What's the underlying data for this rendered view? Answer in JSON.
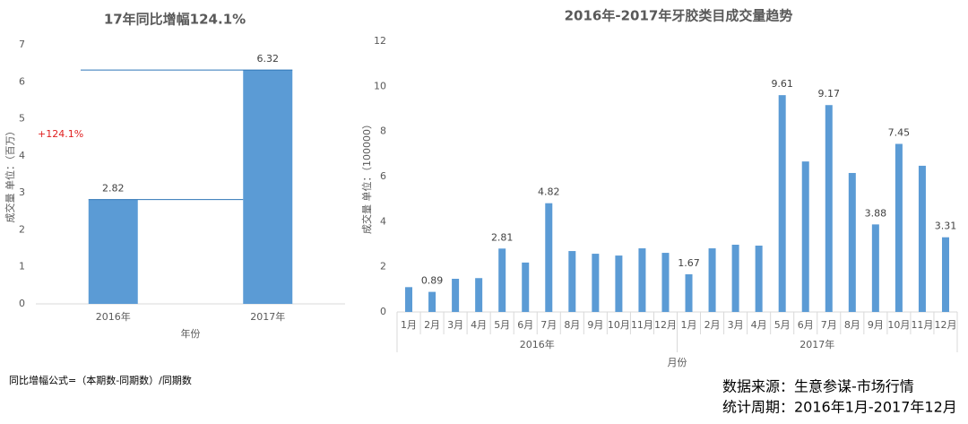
{
  "chart_data": [
    {
      "type": "bar",
      "title": "17年同比增幅124.1%",
      "y_label": "成交量 单位：（百万）",
      "x_label": "年份",
      "categories": [
        "2016年",
        "2017年"
      ],
      "values": [
        2.82,
        6.32
      ],
      "color": "#5b9bd5",
      "ylim": [
        0,
        7
      ],
      "yticks": [
        0,
        1,
        2,
        3,
        4,
        5,
        6,
        7
      ],
      "reference_lines": true,
      "annotation": {
        "text": "+124.1%",
        "color": "#e02020"
      },
      "value_labels": [
        "2.82",
        "6.32"
      ]
    },
    {
      "type": "bar",
      "title": "2016年-2017年牙胶类目成交量趋势",
      "y_label": "成交量 单位：（100000）",
      "x_label": "月份",
      "categories": [
        "1月",
        "2月",
        "3月",
        "4月",
        "5月",
        "6月",
        "7月",
        "8月",
        "9月",
        "10月",
        "11月",
        "12月",
        "1月",
        "2月",
        "3月",
        "4月",
        "5月",
        "6月",
        "7月",
        "8月",
        "9月",
        "10月",
        "11月",
        "12月"
      ],
      "groups": [
        {
          "name": "2016年",
          "count": 12
        },
        {
          "name": "2017年",
          "count": 12
        }
      ],
      "values": [
        1.1,
        0.89,
        1.47,
        1.5,
        2.81,
        2.19,
        4.82,
        2.7,
        2.58,
        2.5,
        2.82,
        2.62,
        1.67,
        2.82,
        2.98,
        2.94,
        9.61,
        6.67,
        9.17,
        6.16,
        3.88,
        7.45,
        6.48,
        3.31
      ],
      "value_labels": [
        null,
        "0.89",
        null,
        null,
        "2.81",
        null,
        "4.82",
        null,
        null,
        null,
        null,
        null,
        "1.67",
        null,
        null,
        null,
        "9.61",
        null,
        "9.17",
        null,
        "3.88",
        "7.45",
        null,
        "3.31"
      ],
      "color": "#5b9bd5",
      "ylim": [
        0,
        12
      ],
      "yticks": [
        0,
        2,
        4,
        6,
        8,
        10,
        12
      ],
      "reference_lines": false
    }
  ],
  "footer": {
    "formula": "同比增幅公式=（本期数-同期数）/同期数",
    "source": "数据来源：生意参谋-市场行情",
    "period": "统计周期：2016年1月-2017年12月"
  }
}
